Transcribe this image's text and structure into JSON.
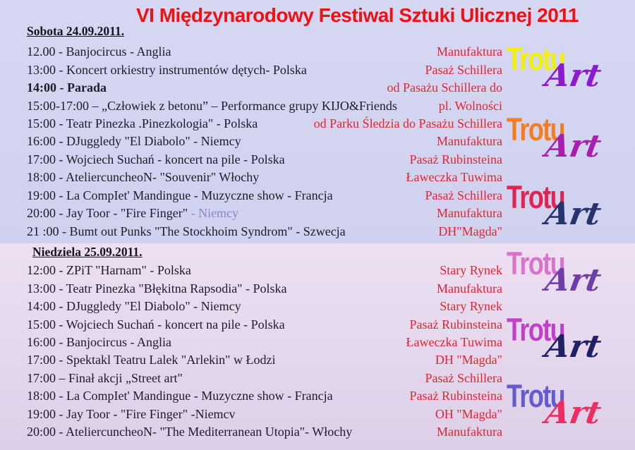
{
  "title": "VI Międzynarodowy Festiwal Sztuki Ulicznej 2011",
  "colors": {
    "title_red": "#ee1111",
    "venue_red": "#e32430",
    "body_text": "#1c1c28",
    "muted_text": "#8487cb",
    "saturday_bg": "#d3d4f1",
    "sunday_bg": "#e5d7ec"
  },
  "sections": [
    {
      "header": "Sobota 24.09.2011.",
      "rows": [
        {
          "event": "12.00 - Banjocircus - Anglia",
          "venue": "Manufaktura"
        },
        {
          "event": "13:00 - Koncert orkiestry instrumentów dętych- Polska",
          "venue": "Pasaż Schillera"
        },
        {
          "event": "14:00 - Parada",
          "bold": true,
          "venue": "od Pasażu Schillera do"
        },
        {
          "event": "15:00-17:00 – „Człowiek z betonu” – Performance grupy KIJO&Friends",
          "venue": "pl. Wolności"
        },
        {
          "event": "15:00 - Teatr Pinezka .Pinezkologia\" - Polska",
          "venue": "od Parku Śledzia do Pasażu Schillera"
        },
        {
          "event": "16:00 - DJuggledy \"El Diabolo\" - Niemcy",
          "venue": "Manufaktura"
        },
        {
          "event": "17:00 - Wojciech Suchań - koncert na pile - Polska",
          "venue": "Pasaż Rubinsteina"
        },
        {
          "event": "18:00 - AteliercuncheoN- \"Souvenir\" Włochy",
          "venue": "Ławeczka Tuwima"
        },
        {
          "event": "19:00 - La CompIet' Mandingue - Muzyczne show - Francja",
          "venue": "Pasaż Schillera"
        },
        {
          "event": "20:00 - Jay Toor - \"Fire Finger\"",
          "event_muted": " - Niemcy",
          "venue": "Manufaktura"
        },
        {
          "event": "21 :00 - Bumt out Punks \"The Stockhoim Syndrom\" - Szwecja",
          "venue": "DH\"Magda\""
        }
      ]
    },
    {
      "header": "Niedziela 25.09.2011.",
      "rows": [
        {
          "event": "12:00 - ZPiT \"Harnam\" - Polska",
          "venue": "Stary Rynek"
        },
        {
          "event": "13:00 - Teatr Pinezka \"Błękitna Rapsodia\" - Polska",
          "venue": "Manufaktura"
        },
        {
          "event": "14:00 - DJuggledy \"El Diabolo\" - Niemcy",
          "venue": "Stary Rynek"
        },
        {
          "event": "15:00 - Wojciech Suchań - koncert na pile - Polska",
          "venue": "Pasaż Rubinsteina"
        },
        {
          "event": "16:00 - Banjocircus - Anglia",
          "venue": "Ławeczka Tuwima"
        },
        {
          "event": "17:00 - Spektakl Teatru Lalek \"Arlekin\" w Łodzi",
          "venue": "DH \"Magda\""
        },
        {
          "event": "17:00 – Finał akcji „Street art\"",
          "venue": "Pasaż Schillera"
        },
        {
          "event": "18:00 - La CompIet' Mandingue - Muzyczne show - Francja",
          "venue": "Pasaż Rubinsteina"
        },
        {
          "event": "19:00 - Jay Toor - \"Fire Finger\" -Niemcv",
          "venue": "OH \"Magda\""
        },
        {
          "event": "20:00 - AteliercuncheoN- \"The Mediterranean Utopia\"- Włochy",
          "venue": "Manufaktura"
        }
      ]
    }
  ],
  "logos": [
    {
      "text_top": "Trotu",
      "text_bottom": "Art",
      "top_color": "#f2f200",
      "bottom_color": "#8a1bce"
    },
    {
      "text_top": "Trotu",
      "text_bottom": "Art",
      "top_color": "#f57d1e",
      "bottom_color": "#a81fae"
    },
    {
      "text_top": "Trotu",
      "text_bottom": "Art",
      "top_color": "#e32254",
      "bottom_color": "#26336f"
    },
    {
      "text_top": "Trotu",
      "text_bottom": "Art",
      "top_color": "#d973cb",
      "bottom_color": "#6f3fa8"
    },
    {
      "text_top": "Trotu",
      "text_bottom": "Art",
      "top_color": "#c23ecb",
      "bottom_color": "#1f2065"
    },
    {
      "text_top": "Trotu",
      "text_bottom": "Art",
      "top_color": "#655bd0",
      "bottom_color": "#ee2d62"
    }
  ]
}
